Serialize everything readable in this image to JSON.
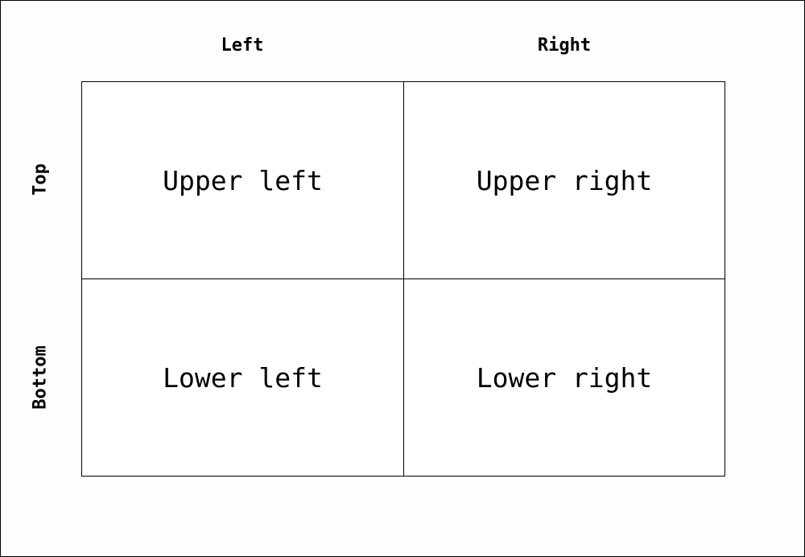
{
  "columns": {
    "left": "Left",
    "right": "Right"
  },
  "rows": {
    "top": "Top",
    "bottom": "Bottom"
  },
  "cells": {
    "upper_left": "Upper left",
    "upper_right": "Upper right",
    "lower_left": "Lower left",
    "lower_right": "Lower right"
  },
  "colors": {
    "line": "#000000",
    "text": "#000000",
    "background": "#ffffff"
  }
}
